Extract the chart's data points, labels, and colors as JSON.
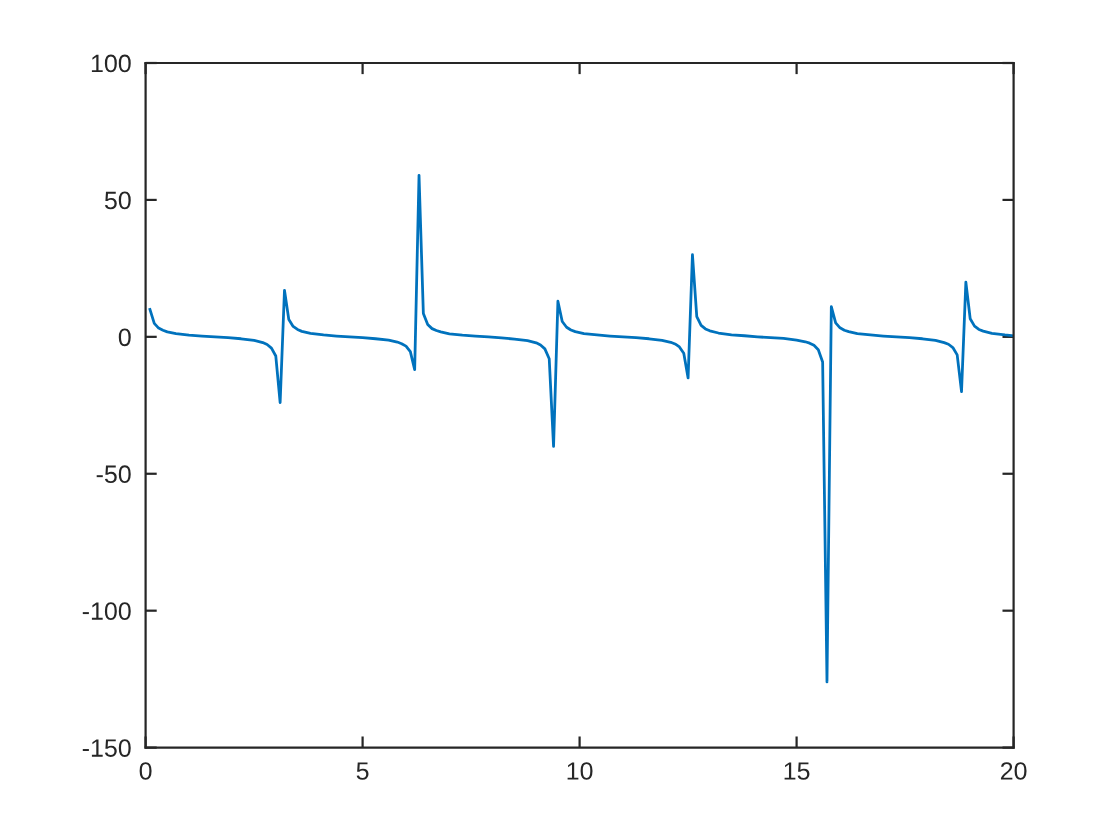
{
  "chart_data": {
    "type": "line",
    "color": "#0072bd",
    "x": [
      0.1,
      0.2,
      0.3,
      0.4,
      0.5,
      0.7,
      1.0,
      1.3,
      1.6,
      1.9,
      2.2,
      2.5,
      2.7,
      2.8,
      2.9,
      3.0,
      3.1,
      3.2,
      3.3,
      3.4,
      3.5,
      3.6,
      3.8,
      4.1,
      4.4,
      4.7,
      5.0,
      5.3,
      5.6,
      5.8,
      5.9,
      6.0,
      6.1,
      6.2,
      6.3,
      6.4,
      6.5,
      6.6,
      6.7,
      6.8,
      7.0,
      7.3,
      7.6,
      7.9,
      8.2,
      8.5,
      8.8,
      9.0,
      9.1,
      9.2,
      9.3,
      9.4,
      9.5,
      9.6,
      9.7,
      9.8,
      9.9,
      10.1,
      10.4,
      10.7,
      11.0,
      11.3,
      11.6,
      11.9,
      12.1,
      12.2,
      12.3,
      12.4,
      12.5,
      12.6,
      12.7,
      12.8,
      12.9,
      13.0,
      13.2,
      13.5,
      13.8,
      14.1,
      14.4,
      14.7,
      15.0,
      15.2,
      15.3,
      15.4,
      15.5,
      15.6,
      15.7,
      15.8,
      15.9,
      16.0,
      16.1,
      16.2,
      16.4,
      16.7,
      17.0,
      17.3,
      17.6,
      17.9,
      18.2,
      18.4,
      18.5,
      18.6,
      18.7,
      18.8,
      18.9,
      19.0,
      19.1,
      19.2,
      19.3,
      19.5,
      19.8,
      20.0
    ],
    "values": [
      10.0,
      4.9,
      3.2,
      2.4,
      1.8,
      1.2,
      0.6,
      0.3,
      0.0,
      -0.3,
      -0.7,
      -1.3,
      -2.1,
      -2.8,
      -4.1,
      -7.0,
      -24,
      17,
      6.3,
      3.8,
      2.7,
      2.0,
      1.3,
      0.7,
      0.3,
      0.0,
      -0.3,
      -0.7,
      -1.2,
      -1.9,
      -2.5,
      -3.4,
      -5.4,
      -12,
      59,
      8.5,
      4.5,
      3.0,
      2.3,
      1.8,
      1.1,
      0.6,
      0.3,
      0.0,
      -0.4,
      -0.8,
      -1.4,
      -2.2,
      -3.0,
      -4.4,
      -8.0,
      -40,
      13,
      5.6,
      3.5,
      2.5,
      1.9,
      1.2,
      0.7,
      0.3,
      0.0,
      -0.3,
      -0.7,
      -1.3,
      -2.0,
      -2.6,
      -3.7,
      -6.0,
      -15,
      30,
      7.4,
      4.2,
      2.9,
      2.2,
      1.4,
      0.7,
      0.4,
      0.0,
      -0.3,
      -0.6,
      -1.2,
      -1.8,
      -2.3,
      -3.1,
      -4.7,
      -9.2,
      -126,
      11,
      5.1,
      3.3,
      2.4,
      1.9,
      1.2,
      0.7,
      0.3,
      0.0,
      -0.3,
      -0.7,
      -1.3,
      -2.1,
      -2.7,
      -3.9,
      -6.6,
      -20,
      20,
      6.6,
      3.9,
      2.7,
      2.1,
      1.3,
      0.7,
      0.4
    ],
    "xlim": [
      0,
      20
    ],
    "ylim": [
      -150,
      100
    ],
    "xticks": [
      0,
      5,
      10,
      15,
      20
    ],
    "yticks": [
      -150,
      -100,
      -50,
      0,
      50,
      100
    ],
    "grid": false,
    "line_style": "solid"
  }
}
